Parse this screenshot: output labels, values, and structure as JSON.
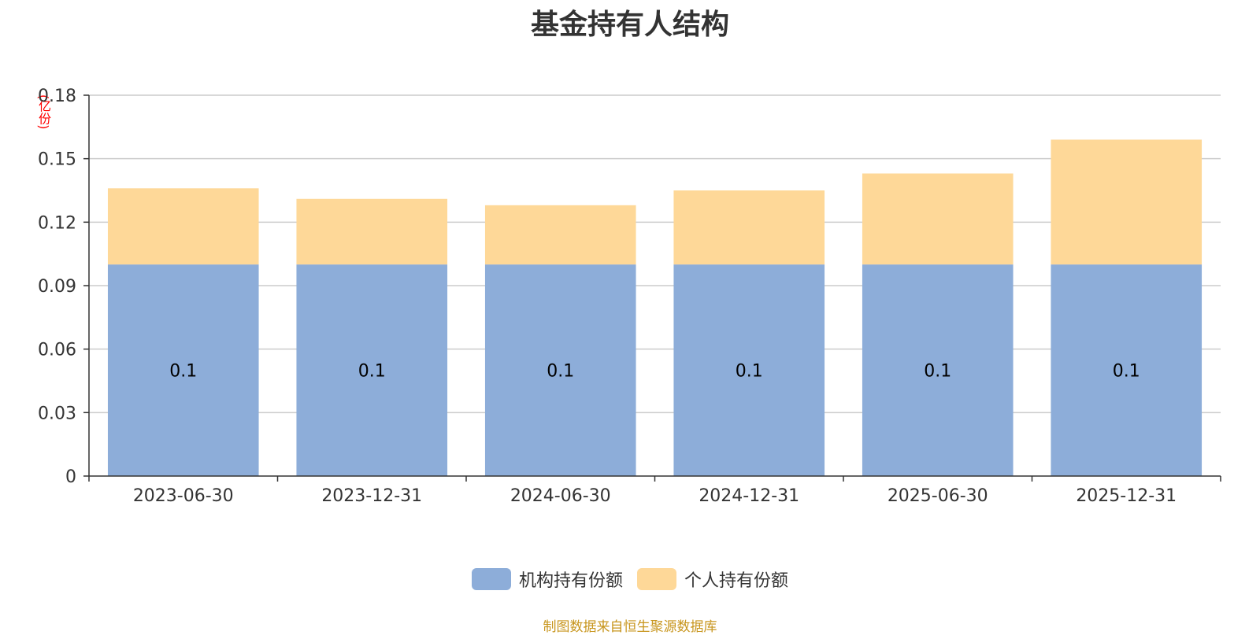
{
  "title": "基金持有人结构",
  "unit_label": "(亿份)",
  "source_note": "制图数据来自恒生聚源数据库",
  "colors": {
    "institutional": "#8dadd9",
    "individual": "#fed898",
    "axis": "#333333",
    "grid": "#cccccc"
  },
  "chart_data": {
    "type": "bar",
    "stacked": true,
    "categories": [
      "2023-06-30",
      "2023-12-31",
      "2024-06-30",
      "2024-12-31",
      "2025-06-30",
      "2025-12-31"
    ],
    "series": [
      {
        "name": "机构持有份额",
        "values": [
          0.1,
          0.1,
          0.1,
          0.1,
          0.1,
          0.1
        ],
        "data_labels": [
          "0.1",
          "0.1",
          "0.1",
          "0.1",
          "0.1",
          "0.1"
        ]
      },
      {
        "name": "个人持有份额",
        "values": [
          0.036,
          0.031,
          0.028,
          0.035,
          0.043,
          0.059
        ]
      }
    ],
    "ylim": [
      0,
      0.18
    ],
    "yticks": [
      "0",
      "0.03",
      "0.06",
      "0.09",
      "0.12",
      "0.15",
      "0.18"
    ],
    "grid": true,
    "legend_position": "bottom"
  }
}
